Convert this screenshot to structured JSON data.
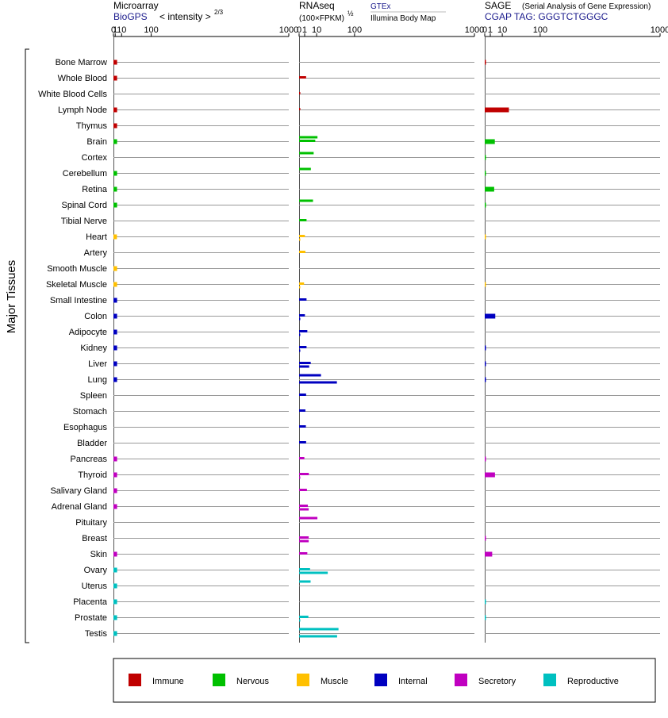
{
  "y_axis_label": "Major Tissues",
  "panels": [
    {
      "title": "Microarray",
      "subtitle": "BioGPS",
      "scale_label": "< intensity >",
      "scale_power": "2/3",
      "ticks": [
        "0",
        "1",
        "10",
        "100",
        "1000"
      ]
    },
    {
      "title": "RNAseq",
      "subtitle": "(100×FPKM)",
      "subtitle_power": "½",
      "source_top": "GTEx",
      "source_bottom": "Illumina Body Map",
      "ticks": [
        "0",
        "1",
        "10",
        "100",
        "1000"
      ]
    },
    {
      "title": "SAGE",
      "title_note": "(Serial Analysis of Gene Expression)",
      "subtitle": "CGAP  TAG: GGGTCTGGGC",
      "ticks": [
        "0",
        "1",
        "10",
        "100",
        "1000"
      ]
    }
  ],
  "legend": [
    {
      "name": "Immune",
      "color": "#c00000"
    },
    {
      "name": "Nervous",
      "color": "#00c000"
    },
    {
      "name": "Muscle",
      "color": "#ffc000"
    },
    {
      "name": "Internal",
      "color": "#0000c0"
    },
    {
      "name": "Secretory",
      "color": "#c000c0"
    },
    {
      "name": "Reproductive",
      "color": "#00c0c0"
    }
  ],
  "chart_data": [
    {
      "type": "bar",
      "orientation": "horizontal",
      "scale": "power 2/3",
      "xlim": [
        0,
        1000
      ],
      "categories": [
        "Bone Marrow",
        "Whole Blood",
        "White Blood Cells",
        "Lymph Node",
        "Thymus",
        "Brain",
        "Cortex",
        "Cerebellum",
        "Retina",
        "Spinal Cord",
        "Tibial Nerve",
        "Heart",
        "Artery",
        "Smooth Muscle",
        "Skeletal Muscle",
        "Small Intestine",
        "Colon",
        "Adipocyte",
        "Kidney",
        "Liver",
        "Lung",
        "Spleen",
        "Stomach",
        "Esophagus",
        "Bladder",
        "Pancreas",
        "Thyroid",
        "Salivary Gland",
        "Adrenal Gland",
        "Pituitary",
        "Breast",
        "Skin",
        "Ovary",
        "Uterus",
        "Placenta",
        "Prostate",
        "Testis"
      ],
      "groups": [
        "Immune",
        "Immune",
        "Immune",
        "Immune",
        "Immune",
        "Nervous",
        "Nervous",
        "Nervous",
        "Nervous",
        "Nervous",
        "Nervous",
        "Muscle",
        "Muscle",
        "Muscle",
        "Muscle",
        "Internal",
        "Internal",
        "Internal",
        "Internal",
        "Internal",
        "Internal",
        "Internal",
        "Internal",
        "Internal",
        "Internal",
        "Secretory",
        "Secretory",
        "Secretory",
        "Secretory",
        "Secretory",
        "Secretory",
        "Secretory",
        "Reproductive",
        "Reproductive",
        "Reproductive",
        "Reproductive",
        "Reproductive"
      ],
      "values": [
        3.0,
        3.0,
        null,
        3.0,
        3.0,
        3.0,
        null,
        3.0,
        2.9,
        3.0,
        null,
        2.8,
        null,
        3.0,
        3.0,
        3.0,
        3.0,
        3.0,
        3.0,
        3.0,
        3.0,
        null,
        null,
        null,
        null,
        3.0,
        3.0,
        3.0,
        3.0,
        null,
        null,
        3.0,
        3.0,
        3.0,
        3.0,
        3.0,
        3.0
      ]
    },
    {
      "type": "bar",
      "orientation": "horizontal",
      "scale": "power 1/2",
      "xlim": [
        0,
        1000
      ],
      "categories": [
        "Bone Marrow",
        "Whole Blood",
        "White Blood Cells",
        "Lymph Node",
        "Thymus",
        "Brain",
        "Cortex",
        "Cerebellum",
        "Retina",
        "Spinal Cord",
        "Tibial Nerve",
        "Heart",
        "Artery",
        "Smooth Muscle",
        "Skeletal Muscle",
        "Small Intestine",
        "Colon",
        "Adipocyte",
        "Kidney",
        "Liver",
        "Lung",
        "Spleen",
        "Stomach",
        "Esophagus",
        "Bladder",
        "Pancreas",
        "Thyroid",
        "Salivary Gland",
        "Adrenal Gland",
        "Pituitary",
        "Breast",
        "Skin",
        "Ovary",
        "Uterus",
        "Placenta",
        "Prostate",
        "Testis"
      ],
      "groups": [
        "Immune",
        "Immune",
        "Immune",
        "Immune",
        "Immune",
        "Nervous",
        "Nervous",
        "Nervous",
        "Nervous",
        "Nervous",
        "Nervous",
        "Muscle",
        "Muscle",
        "Muscle",
        "Muscle",
        "Internal",
        "Internal",
        "Internal",
        "Internal",
        "Internal",
        "Internal",
        "Internal",
        "Internal",
        "Internal",
        "Internal",
        "Secretory",
        "Secretory",
        "Secretory",
        "Secretory",
        "Secretory",
        "Secretory",
        "Secretory",
        "Reproductive",
        "Reproductive",
        "Reproductive",
        "Reproductive",
        "Reproductive"
      ],
      "series": [
        {
          "values": [
            null,
            null,
            null,
            null,
            null,
            11.0,
            6.9,
            4.5,
            null,
            6.3,
            null,
            null,
            null,
            null,
            null,
            null,
            null,
            null,
            null,
            null,
            15.6,
            null,
            null,
            null,
            null,
            null,
            null,
            null,
            null,
            10.9,
            null,
            null,
            null,
            4.3,
            null,
            null,
            50.5
          ]
        },
        {
          "values": [
            null,
            1.6,
            0.01,
            0.01,
            null,
            8.5,
            null,
            null,
            null,
            null,
            1.8,
            1.1,
            1.3,
            null,
            0.8,
            1.8,
            1.1,
            2.2,
            1.8,
            4.4,
            null,
            1.6,
            1.3,
            1.5,
            1.6,
            0.9,
            3.1,
            2.0,
            2.5,
            null,
            3.0,
            2.2,
            3.9,
            null,
            null,
            2.8,
            null
          ]
        },
        {
          "values": [
            null,
            null,
            null,
            null,
            null,
            null,
            null,
            null,
            null,
            null,
            null,
            0.01,
            null,
            null,
            0.01,
            null,
            0.01,
            0.01,
            0.01,
            3.3,
            46.5,
            null,
            null,
            null,
            null,
            null,
            0.01,
            null,
            3.0,
            null,
            3.0,
            null,
            26.7,
            null,
            null,
            0.01,
            47.0
          ]
        }
      ]
    },
    {
      "type": "bar",
      "orientation": "horizontal",
      "scale": "power 1/2",
      "xlim": [
        0,
        1000
      ],
      "categories": [
        "Bone Marrow",
        "Whole Blood",
        "White Blood Cells",
        "Lymph Node",
        "Thymus",
        "Brain",
        "Cortex",
        "Cerebellum",
        "Retina",
        "Spinal Cord",
        "Tibial Nerve",
        "Heart",
        "Artery",
        "Smooth Muscle",
        "Skeletal Muscle",
        "Small Intestine",
        "Colon",
        "Adipocyte",
        "Kidney",
        "Liver",
        "Lung",
        "Spleen",
        "Stomach",
        "Esophagus",
        "Bladder",
        "Pancreas",
        "Thyroid",
        "Salivary Gland",
        "Adrenal Gland",
        "Pituitary",
        "Breast",
        "Skin",
        "Ovary",
        "Uterus",
        "Placenta",
        "Prostate",
        "Testis"
      ],
      "groups": [
        "Immune",
        "Immune",
        "Immune",
        "Immune",
        "Immune",
        "Nervous",
        "Nervous",
        "Nervous",
        "Nervous",
        "Nervous",
        "Nervous",
        "Muscle",
        "Muscle",
        "Muscle",
        "Muscle",
        "Internal",
        "Internal",
        "Internal",
        "Internal",
        "Internal",
        "Internal",
        "Internal",
        "Internal",
        "Internal",
        "Internal",
        "Secretory",
        "Secretory",
        "Secretory",
        "Secretory",
        "Secretory",
        "Secretory",
        "Secretory",
        "Reproductive",
        "Reproductive",
        "Reproductive",
        "Reproductive",
        "Reproductive"
      ],
      "values": [
        0.02,
        null,
        null,
        19.0,
        null,
        3.3,
        0.01,
        0.01,
        2.9,
        0.01,
        null,
        0.01,
        null,
        null,
        0.01,
        null,
        3.6,
        null,
        0.03,
        0.03,
        0.03,
        null,
        null,
        null,
        null,
        0.03,
        3.4,
        null,
        null,
        null,
        0.03,
        1.8,
        null,
        null,
        0.01,
        0.01,
        null
      ]
    }
  ]
}
